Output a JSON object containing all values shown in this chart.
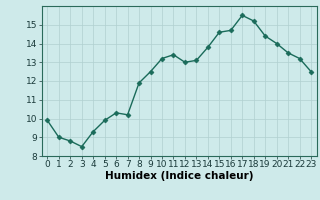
{
  "x": [
    0,
    1,
    2,
    3,
    4,
    5,
    6,
    7,
    8,
    9,
    10,
    11,
    12,
    13,
    14,
    15,
    16,
    17,
    18,
    19,
    20,
    21,
    22,
    23
  ],
  "y": [
    9.9,
    9.0,
    8.8,
    8.5,
    9.3,
    9.9,
    10.3,
    10.2,
    11.9,
    12.5,
    13.2,
    13.4,
    13.0,
    13.1,
    13.8,
    14.6,
    14.7,
    15.5,
    15.2,
    14.4,
    14.0,
    13.5,
    13.2,
    12.5
  ],
  "line_color": "#1a6b5a",
  "marker": "D",
  "marker_size": 2.5,
  "bg_color": "#ceeaea",
  "grid_color": "#b0d0d0",
  "xlabel": "Humidex (Indice chaleur)",
  "xlim": [
    -0.5,
    23.5
  ],
  "ylim": [
    8,
    16
  ],
  "xticks": [
    0,
    1,
    2,
    3,
    4,
    5,
    6,
    7,
    8,
    9,
    10,
    11,
    12,
    13,
    14,
    15,
    16,
    17,
    18,
    19,
    20,
    21,
    22,
    23
  ],
  "yticks": [
    8,
    9,
    10,
    11,
    12,
    13,
    14,
    15
  ],
  "xlabel_fontsize": 7.5,
  "tick_fontsize": 6.5,
  "line_width": 1.0
}
